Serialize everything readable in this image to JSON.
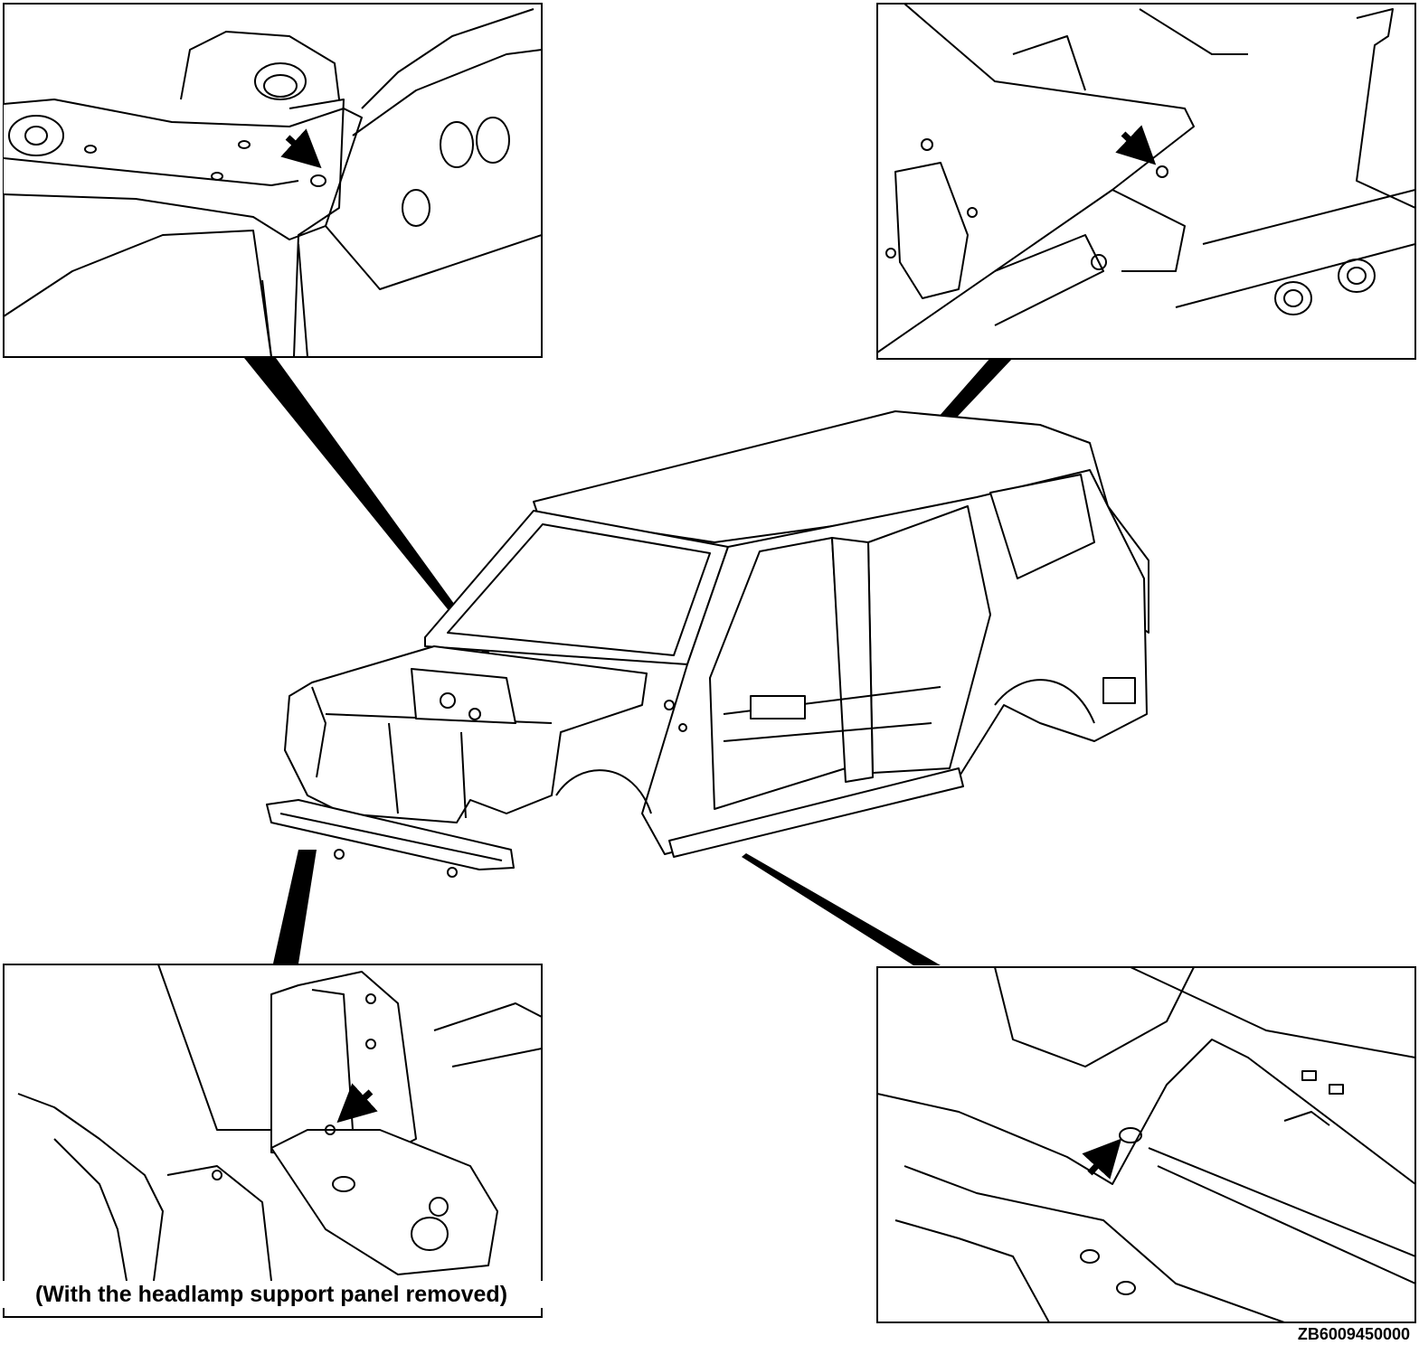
{
  "figure": {
    "caption_bottom_left": "(With the headlamp support panel removed)",
    "figure_code": "ZB6009450000"
  },
  "colors": {
    "line": "#000000",
    "background": "#ffffff"
  },
  "panels": [
    {
      "id": "top-left-detail",
      "arrow": "pointing to hole"
    },
    {
      "id": "top-right-detail",
      "arrow": "pointing to hole"
    },
    {
      "id": "bottom-left-detail",
      "arrow": "pointing to hole"
    },
    {
      "id": "bottom-right-detail",
      "arrow": "pointing to hole"
    }
  ]
}
